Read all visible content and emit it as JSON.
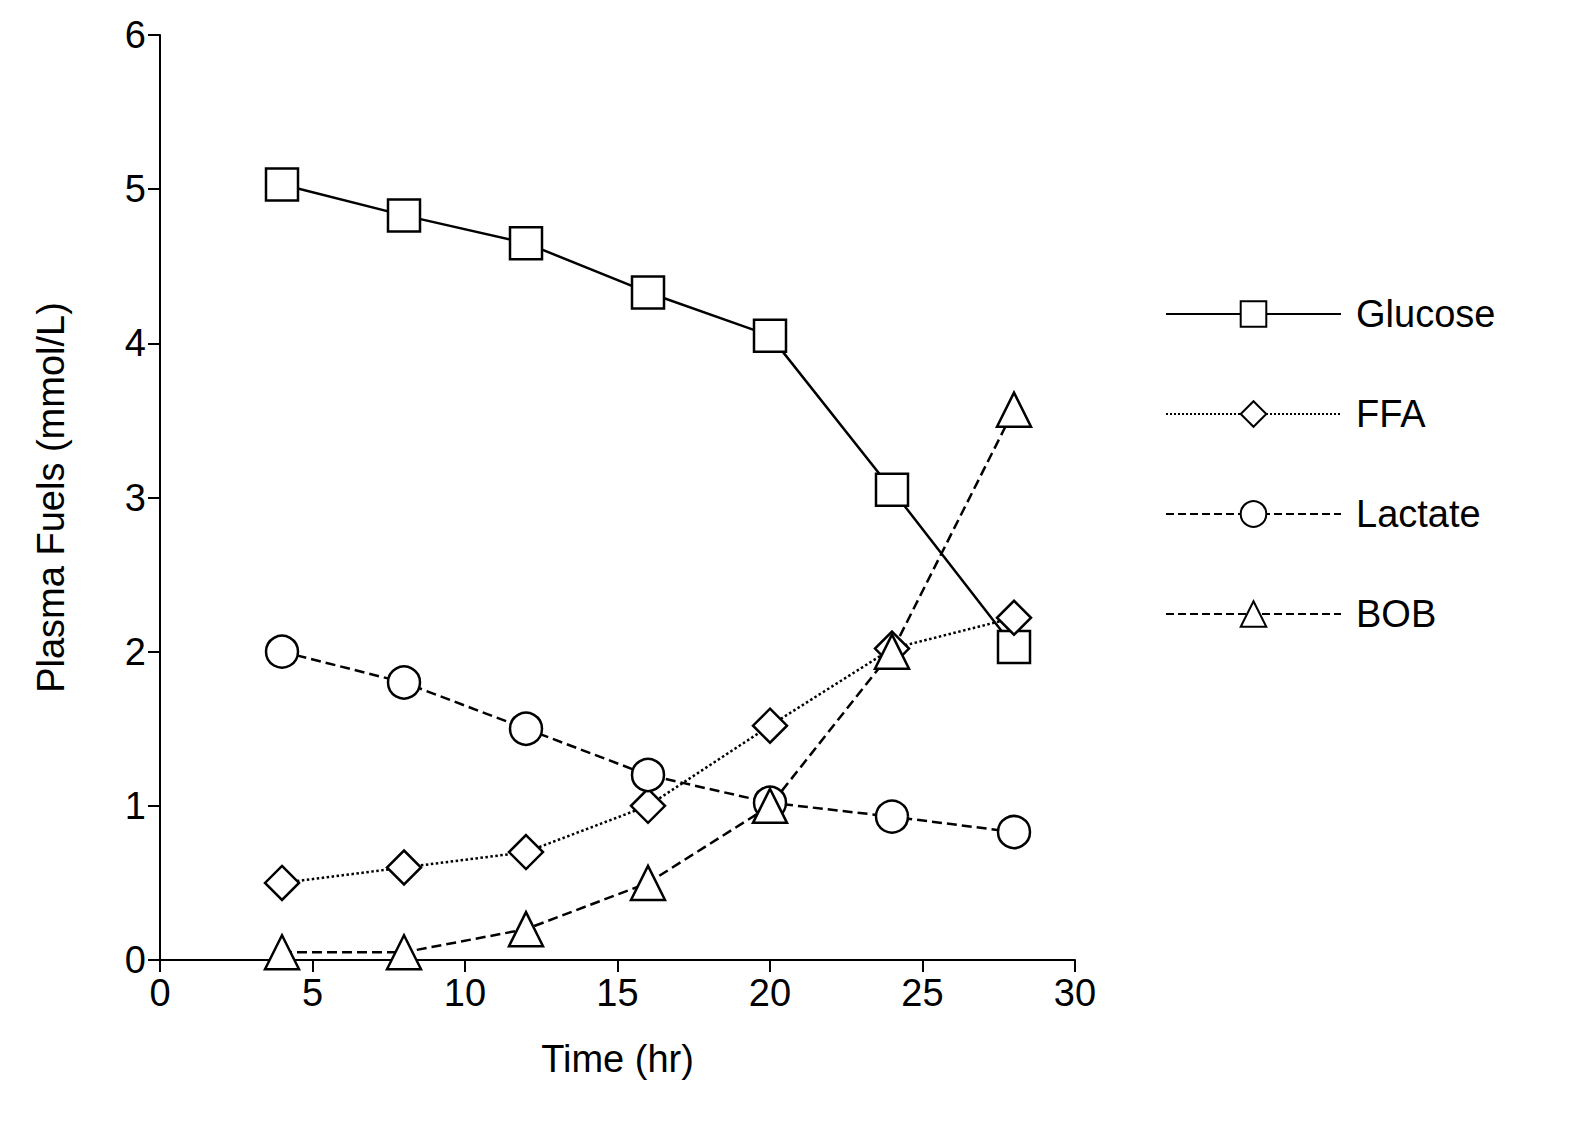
{
  "chart_data": {
    "type": "line",
    "x_label": "Time (hr)",
    "y_label": "Plasma Fuels (mmol/L)",
    "x": [
      4,
      8,
      12,
      16,
      20,
      24,
      28
    ],
    "series": [
      {
        "name": "Glucose",
        "color": "#000000",
        "marker": "square",
        "line_style": "solid",
        "values": [
          5.03,
          4.83,
          4.65,
          4.33,
          4.05,
          3.05,
          2.03
        ]
      },
      {
        "name": "FFA",
        "color": "#000000",
        "marker": "diamond",
        "line_style": "dotted",
        "values": [
          0.5,
          0.6,
          0.7,
          1.0,
          1.52,
          2.02,
          2.22
        ]
      },
      {
        "name": "Lactate",
        "color": "#000000",
        "marker": "circle",
        "line_style": "dashed",
        "values": [
          2.0,
          1.8,
          1.5,
          1.2,
          1.02,
          0.93,
          0.83
        ]
      },
      {
        "name": "BOB",
        "color": "#000000",
        "marker": "triangle",
        "line_style": "dashed",
        "values": [
          0.05,
          0.05,
          0.2,
          0.5,
          1.0,
          2.0,
          3.57
        ]
      }
    ],
    "xlim": [
      0,
      30
    ],
    "xticks": [
      0,
      5,
      10,
      15,
      20,
      25,
      30
    ],
    "ylim": [
      0,
      6
    ],
    "yticks": [
      0,
      1,
      2,
      3,
      4,
      5,
      6
    ],
    "grid": false,
    "legend": "right"
  }
}
